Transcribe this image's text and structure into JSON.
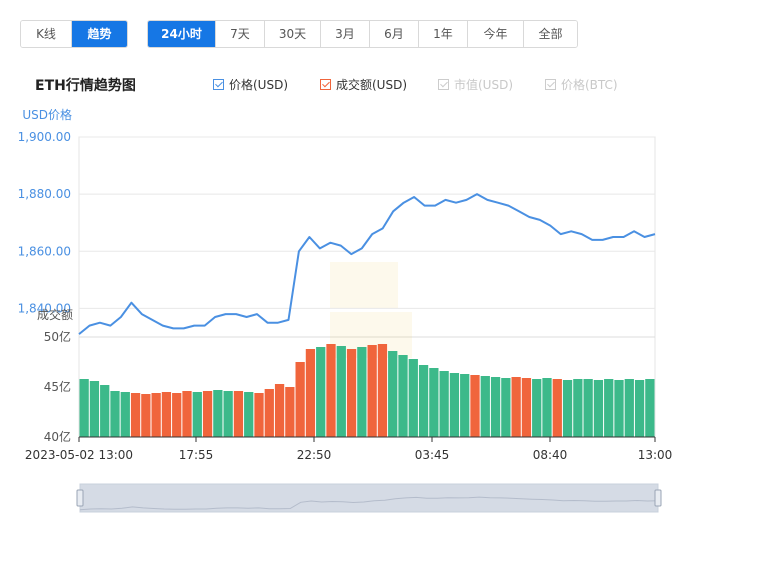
{
  "tabs": {
    "mode": [
      {
        "label": "K线",
        "active": false
      },
      {
        "label": "趋势",
        "active": true
      }
    ],
    "range": [
      {
        "label": "24小时",
        "active": true
      },
      {
        "label": "7天",
        "active": false
      },
      {
        "label": "30天",
        "active": false
      },
      {
        "label": "3月",
        "active": false
      },
      {
        "label": "6月",
        "active": false
      },
      {
        "label": "1年",
        "active": false
      },
      {
        "label": "今年",
        "active": false
      },
      {
        "label": "全部",
        "active": false
      }
    ]
  },
  "chart_title": "ETH行情趋势图",
  "legend": [
    {
      "label": "价格(USD)",
      "checked": true,
      "enabled": true,
      "color": "#4a90e2"
    },
    {
      "label": "成交额(USD)",
      "checked": true,
      "enabled": true,
      "color": "#f0653c"
    },
    {
      "label": "市值(USD)",
      "checked": true,
      "enabled": false,
      "color": "#cccccc"
    },
    {
      "label": "价格(BTC)",
      "checked": true,
      "enabled": false,
      "color": "#cccccc"
    }
  ],
  "colors": {
    "price_line": "#4a90e2",
    "vol_up": "#3cb98a",
    "vol_down": "#f0653c",
    "axis_text": "#4a90e2",
    "grid": "#e8e8e8",
    "slider_fill": "#d5dbe5"
  },
  "chart_data": {
    "type": "line+bar",
    "ylabel_price": "USD价格",
    "ylabel_volume": "成交额",
    "price_ticks": [
      "1,900.00",
      "1,880.00",
      "1,860.00",
      "1,840.00"
    ],
    "price_ylim": [
      1830,
      1900
    ],
    "volume_ticks": [
      "50亿",
      "45亿",
      "40亿"
    ],
    "volume_ylim": [
      40,
      50
    ],
    "x_ticks": [
      "2023-05-02 13:00",
      "17:55",
      "22:50",
      "03:45",
      "08:40",
      "13:00"
    ],
    "price_series": [
      1831,
      1834,
      1835,
      1834,
      1837,
      1842,
      1838,
      1836,
      1834,
      1833,
      1833,
      1834,
      1834,
      1837,
      1838,
      1838,
      1837,
      1838,
      1835,
      1835,
      1836,
      1860,
      1865,
      1861,
      1863,
      1862,
      1859,
      1861,
      1866,
      1868,
      1874,
      1877,
      1879,
      1876,
      1876,
      1878,
      1877,
      1878,
      1880,
      1878,
      1877,
      1876,
      1874,
      1872,
      1871,
      1869,
      1866,
      1867,
      1866,
      1864,
      1864,
      1865,
      1865,
      1867,
      1865,
      1866
    ],
    "volume_series": [
      {
        "v": 45.8,
        "up": true
      },
      {
        "v": 45.6,
        "up": true
      },
      {
        "v": 45.2,
        "up": true
      },
      {
        "v": 44.6,
        "up": true
      },
      {
        "v": 44.5,
        "up": true
      },
      {
        "v": 44.4,
        "up": false
      },
      {
        "v": 44.3,
        "up": false
      },
      {
        "v": 44.4,
        "up": false
      },
      {
        "v": 44.5,
        "up": false
      },
      {
        "v": 44.4,
        "up": false
      },
      {
        "v": 44.6,
        "up": false
      },
      {
        "v": 44.5,
        "up": true
      },
      {
        "v": 44.6,
        "up": false
      },
      {
        "v": 44.7,
        "up": true
      },
      {
        "v": 44.6,
        "up": true
      },
      {
        "v": 44.6,
        "up": false
      },
      {
        "v": 44.5,
        "up": true
      },
      {
        "v": 44.4,
        "up": false
      },
      {
        "v": 44.8,
        "up": false
      },
      {
        "v": 45.3,
        "up": false
      },
      {
        "v": 45.0,
        "up": false
      },
      {
        "v": 47.5,
        "up": false
      },
      {
        "v": 48.8,
        "up": false
      },
      {
        "v": 49.0,
        "up": true
      },
      {
        "v": 49.3,
        "up": false
      },
      {
        "v": 49.1,
        "up": true
      },
      {
        "v": 48.8,
        "up": false
      },
      {
        "v": 49.0,
        "up": true
      },
      {
        "v": 49.2,
        "up": false
      },
      {
        "v": 49.3,
        "up": false
      },
      {
        "v": 48.6,
        "up": true
      },
      {
        "v": 48.2,
        "up": true
      },
      {
        "v": 47.8,
        "up": true
      },
      {
        "v": 47.2,
        "up": true
      },
      {
        "v": 46.9,
        "up": true
      },
      {
        "v": 46.6,
        "up": true
      },
      {
        "v": 46.4,
        "up": true
      },
      {
        "v": 46.3,
        "up": true
      },
      {
        "v": 46.2,
        "up": false
      },
      {
        "v": 46.1,
        "up": true
      },
      {
        "v": 46.0,
        "up": true
      },
      {
        "v": 45.9,
        "up": true
      },
      {
        "v": 46.0,
        "up": false
      },
      {
        "v": 45.9,
        "up": false
      },
      {
        "v": 45.8,
        "up": true
      },
      {
        "v": 45.9,
        "up": true
      },
      {
        "v": 45.8,
        "up": false
      },
      {
        "v": 45.7,
        "up": true
      },
      {
        "v": 45.8,
        "up": true
      },
      {
        "v": 45.8,
        "up": true
      },
      {
        "v": 45.7,
        "up": true
      },
      {
        "v": 45.8,
        "up": true
      },
      {
        "v": 45.7,
        "up": true
      },
      {
        "v": 45.8,
        "up": true
      },
      {
        "v": 45.7,
        "up": true
      },
      {
        "v": 45.8,
        "up": true
      }
    ]
  }
}
